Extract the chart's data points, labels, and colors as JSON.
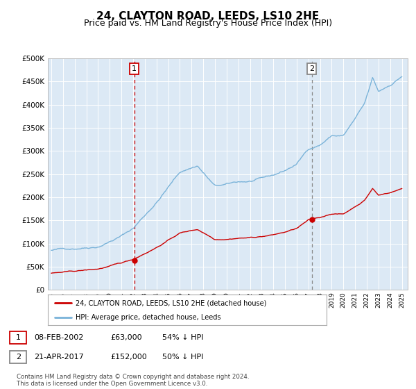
{
  "title": "24, CLAYTON ROAD, LEEDS, LS10 2HE",
  "subtitle": "Price paid vs. HM Land Registry's House Price Index (HPI)",
  "title_fontsize": 11,
  "subtitle_fontsize": 9,
  "background_color": "#ffffff",
  "plot_bg_color": "#dce9f5",
  "grid_color": "#ffffff",
  "ylim": [
    0,
    500000
  ],
  "yticks": [
    0,
    50000,
    100000,
    150000,
    200000,
    250000,
    300000,
    350000,
    400000,
    450000,
    500000
  ],
  "hpi_color": "#7ab3d9",
  "property_color": "#cc0000",
  "purchase1_date": 2002.1,
  "purchase1_price": 63000,
  "purchase2_date": 2017.3,
  "purchase2_price": 152000,
  "vline1_color": "#cc0000",
  "vline2_color": "#888888",
  "legend_entries": [
    "24, CLAYTON ROAD, LEEDS, LS10 2HE (detached house)",
    "HPI: Average price, detached house, Leeds"
  ],
  "table_row1": [
    "1",
    "08-FEB-2002",
    "£63,000",
    "54% ↓ HPI"
  ],
  "table_row2": [
    "2",
    "21-APR-2017",
    "£152,000",
    "50% ↓ HPI"
  ],
  "footnote": "Contains HM Land Registry data © Crown copyright and database right 2024.\nThis data is licensed under the Open Government Licence v3.0.",
  "xstart": 1995,
  "xend": 2025
}
